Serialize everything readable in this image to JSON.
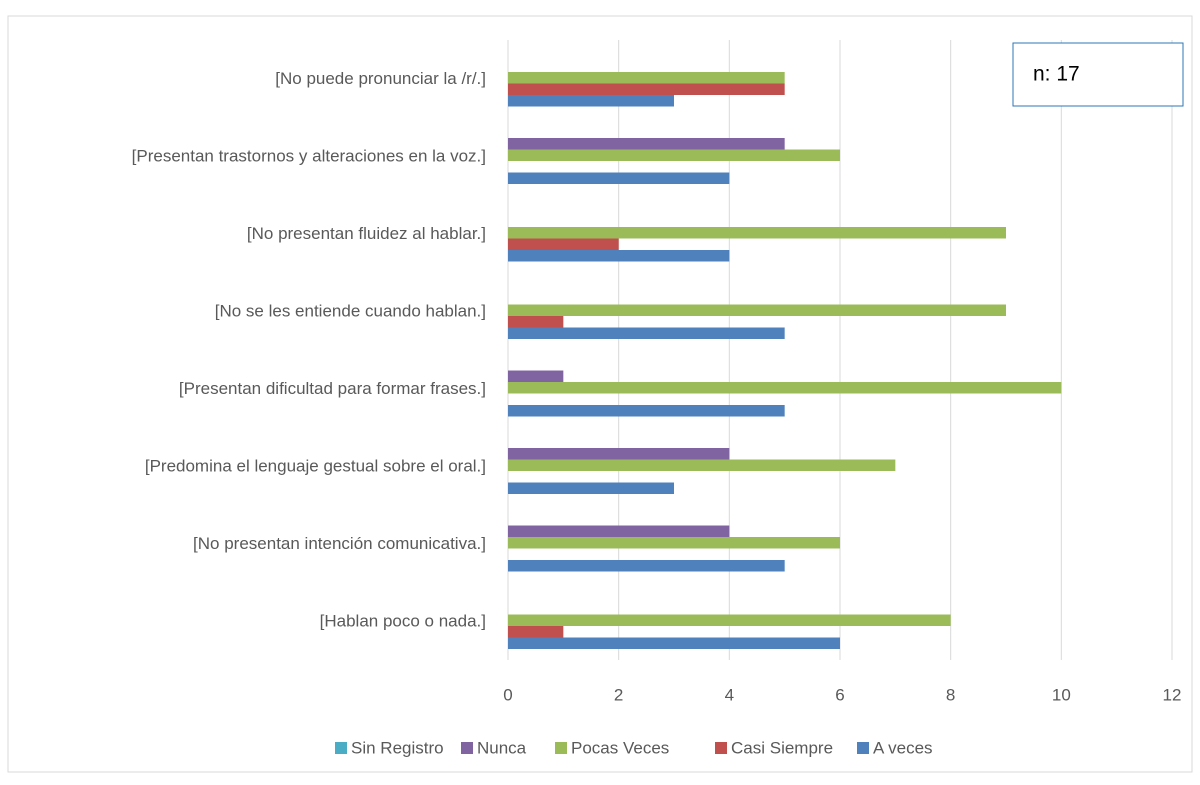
{
  "chart_data": {
    "type": "bar",
    "orientation": "horizontal",
    "annotation": "n: 17",
    "categories": [
      "[No puede pronunciar la /r/.]",
      "[Presentan trastornos y alteraciones en la voz.]",
      "[No presentan fluidez al hablar.]",
      "[No se les entiende cuando hablan.]",
      "[Presentan dificultad para formar frases.]",
      "[Predomina el lenguaje gestual sobre el oral.]",
      "[No presentan intención comunicativa.]",
      "[Hablan poco o nada.]"
    ],
    "series": [
      {
        "name": "Sin Registro",
        "color": "#4bacc6",
        "values": [
          null,
          null,
          null,
          null,
          null,
          null,
          null,
          null
        ]
      },
      {
        "name": "Nunca",
        "color": "#8064a2",
        "values": [
          null,
          5,
          null,
          null,
          1,
          4,
          4,
          null
        ]
      },
      {
        "name": "Pocas  Veces",
        "color": "#9bbb59",
        "values": [
          5,
          6,
          9,
          9,
          10,
          7,
          6,
          8
        ]
      },
      {
        "name": "Casi Siempre",
        "color": "#c0504d",
        "values": [
          5,
          null,
          2,
          1,
          null,
          null,
          null,
          1
        ]
      },
      {
        "name": "A veces",
        "color": "#4f81bd",
        "values": [
          3,
          4,
          4,
          5,
          5,
          3,
          5,
          6
        ]
      }
    ],
    "xlim": [
      0,
      12
    ],
    "xticks": [
      0,
      2,
      4,
      6,
      8,
      10,
      12
    ],
    "grid": true,
    "legend": "bottom"
  }
}
